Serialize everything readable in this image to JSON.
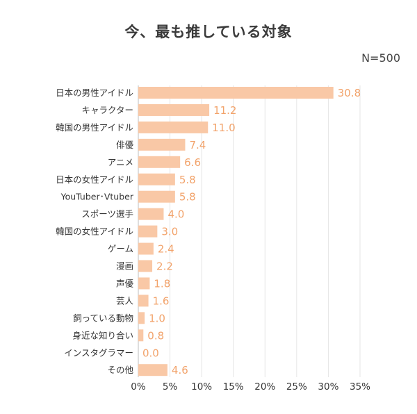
{
  "chart_data": {
    "type": "bar",
    "orientation": "horizontal",
    "title": "今、最も推している対象",
    "annotation": "N=500",
    "categories": [
      "日本の男性アイドル",
      "キャラクター",
      "韓国の男性アイドル",
      "俳優",
      "アニメ",
      "日本の女性アイドル",
      "YouTuber･Vtuber",
      "スポーツ選手",
      "韓国の女性アイドル",
      "ゲーム",
      "漫画",
      "声優",
      "芸人",
      "飼っている動物",
      "身近な知り合い",
      "インスタグラマー",
      "その他"
    ],
    "values": [
      30.8,
      11.2,
      11.0,
      7.4,
      6.6,
      5.8,
      5.8,
      4.0,
      3.0,
      2.4,
      2.2,
      1.8,
      1.6,
      1.0,
      0.8,
      0.0,
      4.6
    ],
    "value_labels": [
      "30.8",
      "11.2",
      "11.0",
      "7.4",
      "6.6",
      "5.8",
      "5.8",
      "4.0",
      "3.0",
      "2.4",
      "2.2",
      "1.8",
      "1.6",
      "1.0",
      "0.8",
      "0.0",
      "4.6"
    ],
    "xlim": [
      0,
      35
    ],
    "xticks": [
      0,
      5,
      10,
      15,
      20,
      25,
      30,
      35
    ],
    "xtick_labels": [
      "0%",
      "5%",
      "10%",
      "15%",
      "20%",
      "25%",
      "30%",
      "35%"
    ],
    "grid": "vertical",
    "colors": {
      "bar": "#f9c8a6",
      "value_label": "#f2a36b",
      "grid": "#e4e4e4",
      "axis": "#bdbdbd"
    }
  }
}
